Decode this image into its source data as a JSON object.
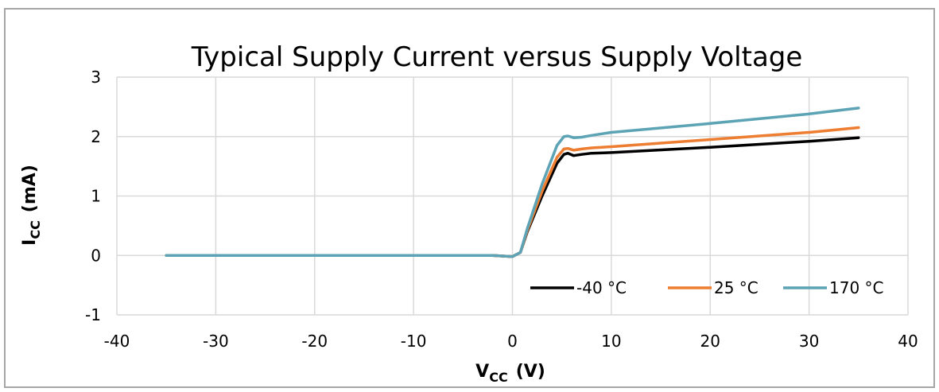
{
  "chart_data": {
    "type": "line",
    "title": "Typical Supply Current versus Supply Voltage",
    "xlabel": {
      "main": "V",
      "sub": "CC",
      "unit": "(V)"
    },
    "ylabel": {
      "main": "I",
      "sub": "CC",
      "unit": "(mA)"
    },
    "xlim": [
      -40,
      40
    ],
    "ylim": [
      -1,
      3
    ],
    "x_ticks": [
      "-40",
      "-30",
      "-20",
      "-10",
      "0",
      "10",
      "20",
      "30",
      "40"
    ],
    "y_ticks": [
      "-1",
      "0",
      "1",
      "2",
      "3"
    ],
    "grid": true,
    "legend_position": "bottom-right",
    "series": [
      {
        "name": "-40 °C",
        "color": "#000000",
        "points": [
          [
            -35,
            0
          ],
          [
            -10,
            0
          ],
          [
            -2,
            0
          ],
          [
            0,
            -0.02
          ],
          [
            0.8,
            0.05
          ],
          [
            1.5,
            0.4
          ],
          [
            3,
            1.0
          ],
          [
            4.5,
            1.55
          ],
          [
            5.2,
            1.7
          ],
          [
            5.6,
            1.72
          ],
          [
            6.2,
            1.68
          ],
          [
            7,
            1.7
          ],
          [
            8,
            1.72
          ],
          [
            10,
            1.73
          ],
          [
            20,
            1.82
          ],
          [
            30,
            1.92
          ],
          [
            35,
            1.98
          ]
        ]
      },
      {
        "name": "25 °C",
        "color": "#ED7D31",
        "points": [
          [
            -35,
            0
          ],
          [
            -10,
            0
          ],
          [
            -2,
            0
          ],
          [
            0,
            -0.02
          ],
          [
            0.8,
            0.05
          ],
          [
            1.5,
            0.42
          ],
          [
            3,
            1.08
          ],
          [
            4.5,
            1.65
          ],
          [
            5.2,
            1.79
          ],
          [
            5.6,
            1.8
          ],
          [
            6.2,
            1.77
          ],
          [
            7,
            1.79
          ],
          [
            8,
            1.81
          ],
          [
            10,
            1.83
          ],
          [
            20,
            1.95
          ],
          [
            30,
            2.07
          ],
          [
            35,
            2.15
          ]
        ]
      },
      {
        "name": "170 °C",
        "color": "#5BA3B5",
        "points": [
          [
            -35,
            0
          ],
          [
            -10,
            0
          ],
          [
            -2,
            0
          ],
          [
            0,
            -0.02
          ],
          [
            0.8,
            0.05
          ],
          [
            1.5,
            0.45
          ],
          [
            3,
            1.2
          ],
          [
            4.5,
            1.85
          ],
          [
            5.2,
            2.0
          ],
          [
            5.6,
            2.01
          ],
          [
            6.2,
            1.98
          ],
          [
            7,
            1.99
          ],
          [
            8,
            2.02
          ],
          [
            10,
            2.07
          ],
          [
            20,
            2.22
          ],
          [
            30,
            2.38
          ],
          [
            35,
            2.48
          ]
        ]
      }
    ]
  }
}
